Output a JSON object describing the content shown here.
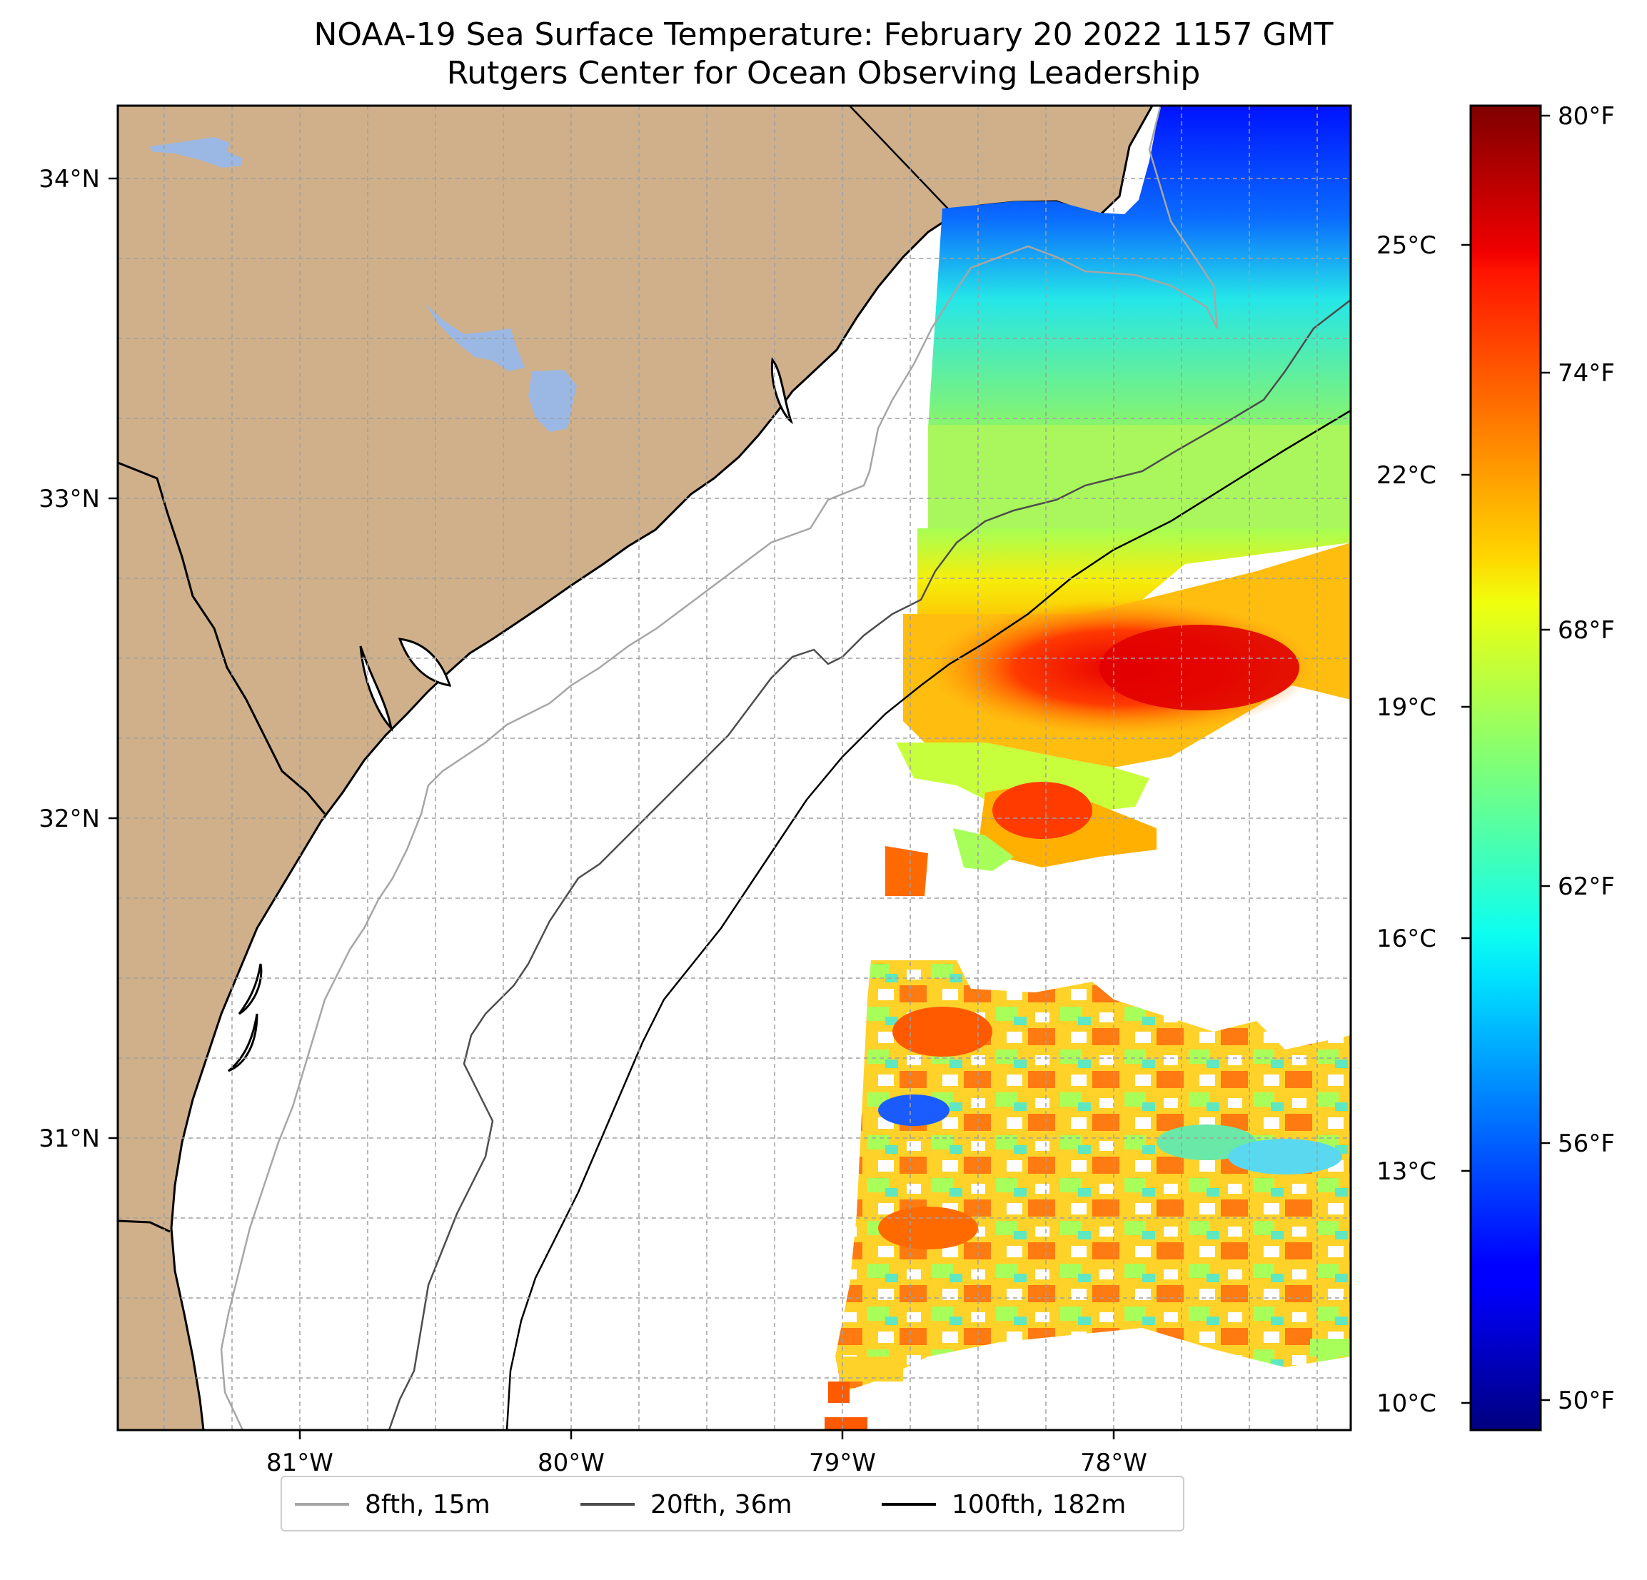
{
  "title": {
    "line1": "NOAA-19 Sea Surface Temperature: February 20 2022 1157 GMT",
    "line2": "Rutgers Center for Ocean Observing Leadership"
  },
  "map": {
    "lon_range": [
      -81.67,
      -77.12
    ],
    "lat_range": [
      30.07,
      34.22
    ],
    "lat_labels": [
      "34°N",
      "33°N",
      "32°N",
      "31°N"
    ],
    "lon_labels": [
      "81°W",
      "80°W",
      "79°W",
      "78°W"
    ],
    "gridlines": true,
    "gridline_style": "dashed",
    "land_color": "#cfb08a",
    "lake_color": "#9bb8e4",
    "coastline_color": "#000000",
    "icon": "map-region"
  },
  "colorbar": {
    "colormap": "jet",
    "celsius_labels": [
      "25°C",
      "22°C",
      "19°C",
      "16°C",
      "13°C",
      "10°C"
    ],
    "fahrenheit_labels": [
      "80°F",
      "74°F",
      "68°F",
      "62°F",
      "56°F",
      "50°F"
    ],
    "range_f": [
      49.5,
      80.5
    ]
  },
  "legend": {
    "placement": "bottom-center",
    "items": [
      {
        "label": "8fth, 15m",
        "color": "#a6a6a6"
      },
      {
        "label": "20fth, 36m",
        "color": "#4d4d4d"
      },
      {
        "label": "100fth, 182m",
        "color": "#000000"
      }
    ]
  }
}
